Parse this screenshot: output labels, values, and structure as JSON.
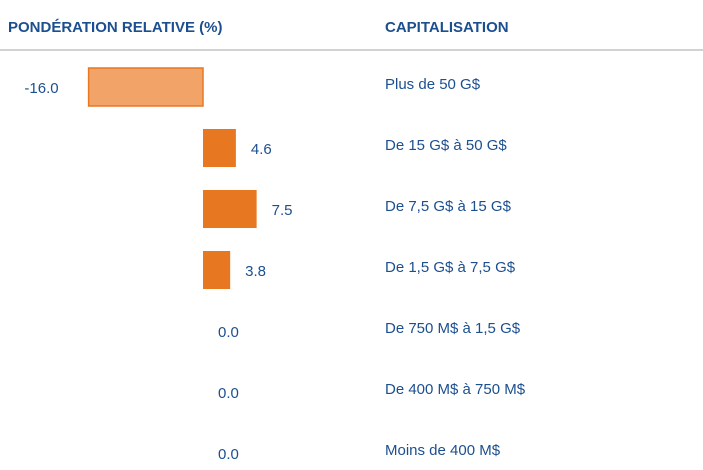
{
  "chart_data": {
    "type": "bar",
    "orientation": "horizontal",
    "value_header": "PONDÉRATION RELATIVE (%)",
    "category_header": "CAPITALISATION",
    "categories": [
      "Plus de 50 G$",
      "De 15 G$ à 50 G$",
      "De 7,5 G$ à 15 G$",
      "De 1,5 G$ à 7,5 G$",
      "De 750 M$ à 1,5 G$",
      "De 400 M$ à 750 M$",
      "Moins de 400 M$"
    ],
    "values": [
      -16.0,
      4.6,
      7.5,
      3.8,
      0.0,
      0.0,
      0.0
    ],
    "value_labels": [
      "-16.0",
      "4.6",
      "7.5",
      "3.8",
      "0.0",
      "0.0",
      "0.0"
    ],
    "colors": [
      "#f2a468",
      "#e87722",
      "#e87722",
      "#e87722",
      "#e87722",
      "#e87722",
      "#e87722"
    ]
  }
}
